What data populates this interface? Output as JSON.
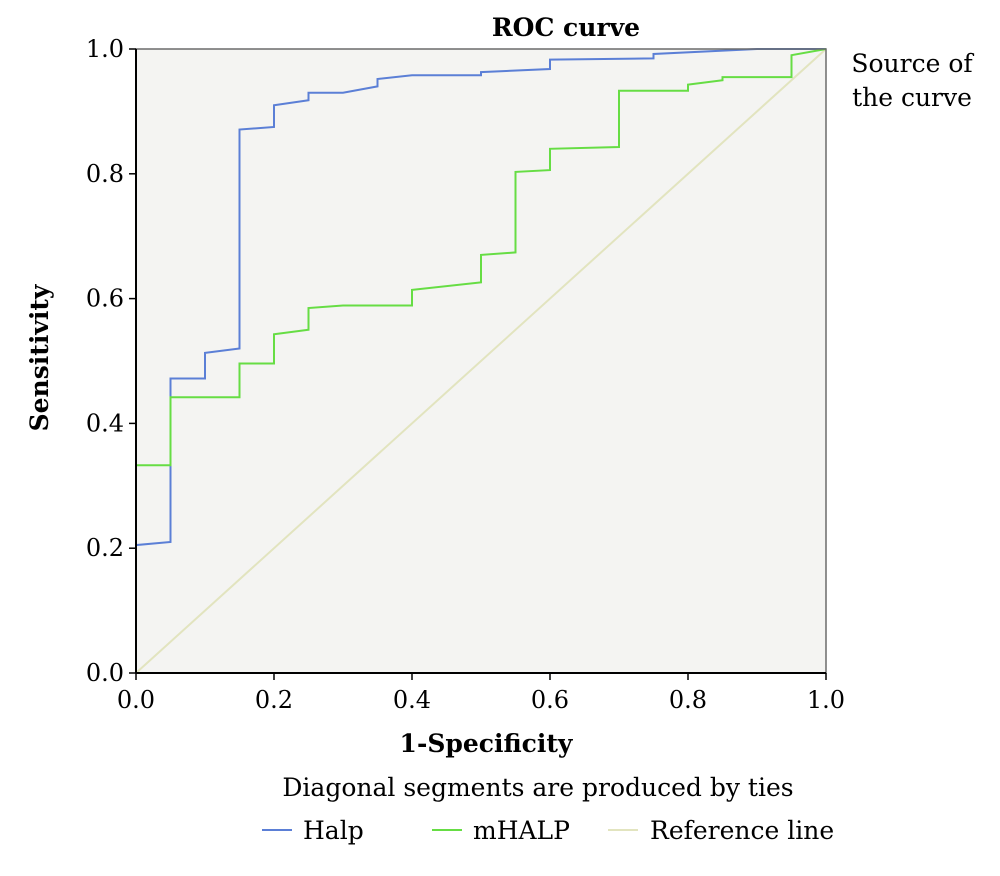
{
  "chart_data": {
    "type": "line",
    "title": "ROC curve",
    "xlabel": "1-Specificity",
    "ylabel": "Sensitivity",
    "xlim": [
      0.0,
      1.0
    ],
    "ylim": [
      0.0,
      1.0
    ],
    "x_ticks": [
      "0.0",
      "0.2",
      "0.4",
      "0.6",
      "0.8",
      "1.0"
    ],
    "y_ticks": [
      "0.0",
      "0.2",
      "0.4",
      "0.6",
      "0.8",
      "1.0"
    ],
    "legend_title": "Source of the curve",
    "legend_title_lines": [
      "Source of",
      "the curve"
    ],
    "legend_title_position": "right",
    "footnote": "Diagonal segments are produced by ties",
    "legend_position": "bottom",
    "grid": false,
    "plot_background": "#f4f4f2",
    "series": [
      {
        "name": "Halp",
        "color": "#5b7fd6",
        "points": [
          [
            0,
            0
          ],
          [
            0,
            0.205
          ],
          [
            0.05,
            0.21
          ],
          [
            0.05,
            0.472
          ],
          [
            0.1,
            0.472
          ],
          [
            0.1,
            0.513
          ],
          [
            0.15,
            0.52
          ],
          [
            0.15,
            0.871
          ],
          [
            0.2,
            0.875
          ],
          [
            0.2,
            0.91
          ],
          [
            0.25,
            0.918
          ],
          [
            0.25,
            0.93
          ],
          [
            0.3,
            0.93
          ],
          [
            0.35,
            0.94
          ],
          [
            0.35,
            0.952
          ],
          [
            0.4,
            0.958
          ],
          [
            0.5,
            0.958
          ],
          [
            0.5,
            0.963
          ],
          [
            0.6,
            0.968
          ],
          [
            0.6,
            0.983
          ],
          [
            0.75,
            0.985
          ],
          [
            0.75,
            0.992
          ],
          [
            0.9,
            1.0
          ],
          [
            1.0,
            1.0
          ]
        ]
      },
      {
        "name": "mHALP",
        "color": "#66dd44",
        "points": [
          [
            0,
            0
          ],
          [
            0,
            0.333
          ],
          [
            0.05,
            0.333
          ],
          [
            0.05,
            0.442
          ],
          [
            0.15,
            0.442
          ],
          [
            0.15,
            0.496
          ],
          [
            0.2,
            0.496
          ],
          [
            0.2,
            0.543
          ],
          [
            0.25,
            0.55
          ],
          [
            0.25,
            0.585
          ],
          [
            0.3,
            0.589
          ],
          [
            0.4,
            0.589
          ],
          [
            0.4,
            0.614
          ],
          [
            0.5,
            0.626
          ],
          [
            0.5,
            0.67
          ],
          [
            0.55,
            0.674
          ],
          [
            0.55,
            0.803
          ],
          [
            0.6,
            0.806
          ],
          [
            0.6,
            0.84
          ],
          [
            0.7,
            0.843
          ],
          [
            0.7,
            0.933
          ],
          [
            0.8,
            0.933
          ],
          [
            0.8,
            0.943
          ],
          [
            0.85,
            0.95
          ],
          [
            0.85,
            0.955
          ],
          [
            0.95,
            0.955
          ],
          [
            0.95,
            0.99
          ],
          [
            1.0,
            1.0
          ]
        ]
      },
      {
        "name": "Reference line",
        "color": "#e2e4bf",
        "points": [
          [
            0,
            0
          ],
          [
            1,
            1
          ]
        ]
      }
    ]
  }
}
